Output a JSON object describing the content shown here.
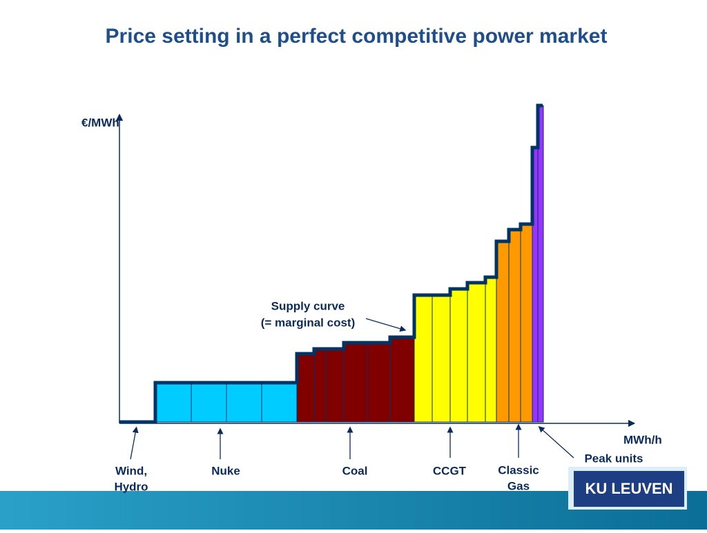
{
  "title": "Price setting in a perfect competitive power market",
  "y_axis_label": "€/MWh",
  "x_axis_label": "MWh/h",
  "supply_curve_label": [
    "Supply curve",
    "(= marginal cost)"
  ],
  "technologies": [
    {
      "lines": [
        "Wind,",
        "Hydro"
      ]
    },
    {
      "lines": [
        "Nuke"
      ]
    },
    {
      "lines": [
        "Coal"
      ]
    },
    {
      "lines": [
        "CCGT"
      ]
    },
    {
      "lines": [
        "Classic",
        "Gas"
      ]
    },
    {
      "lines": [
        "Peak units"
      ]
    }
  ],
  "logo": "KU LEUVEN"
}
